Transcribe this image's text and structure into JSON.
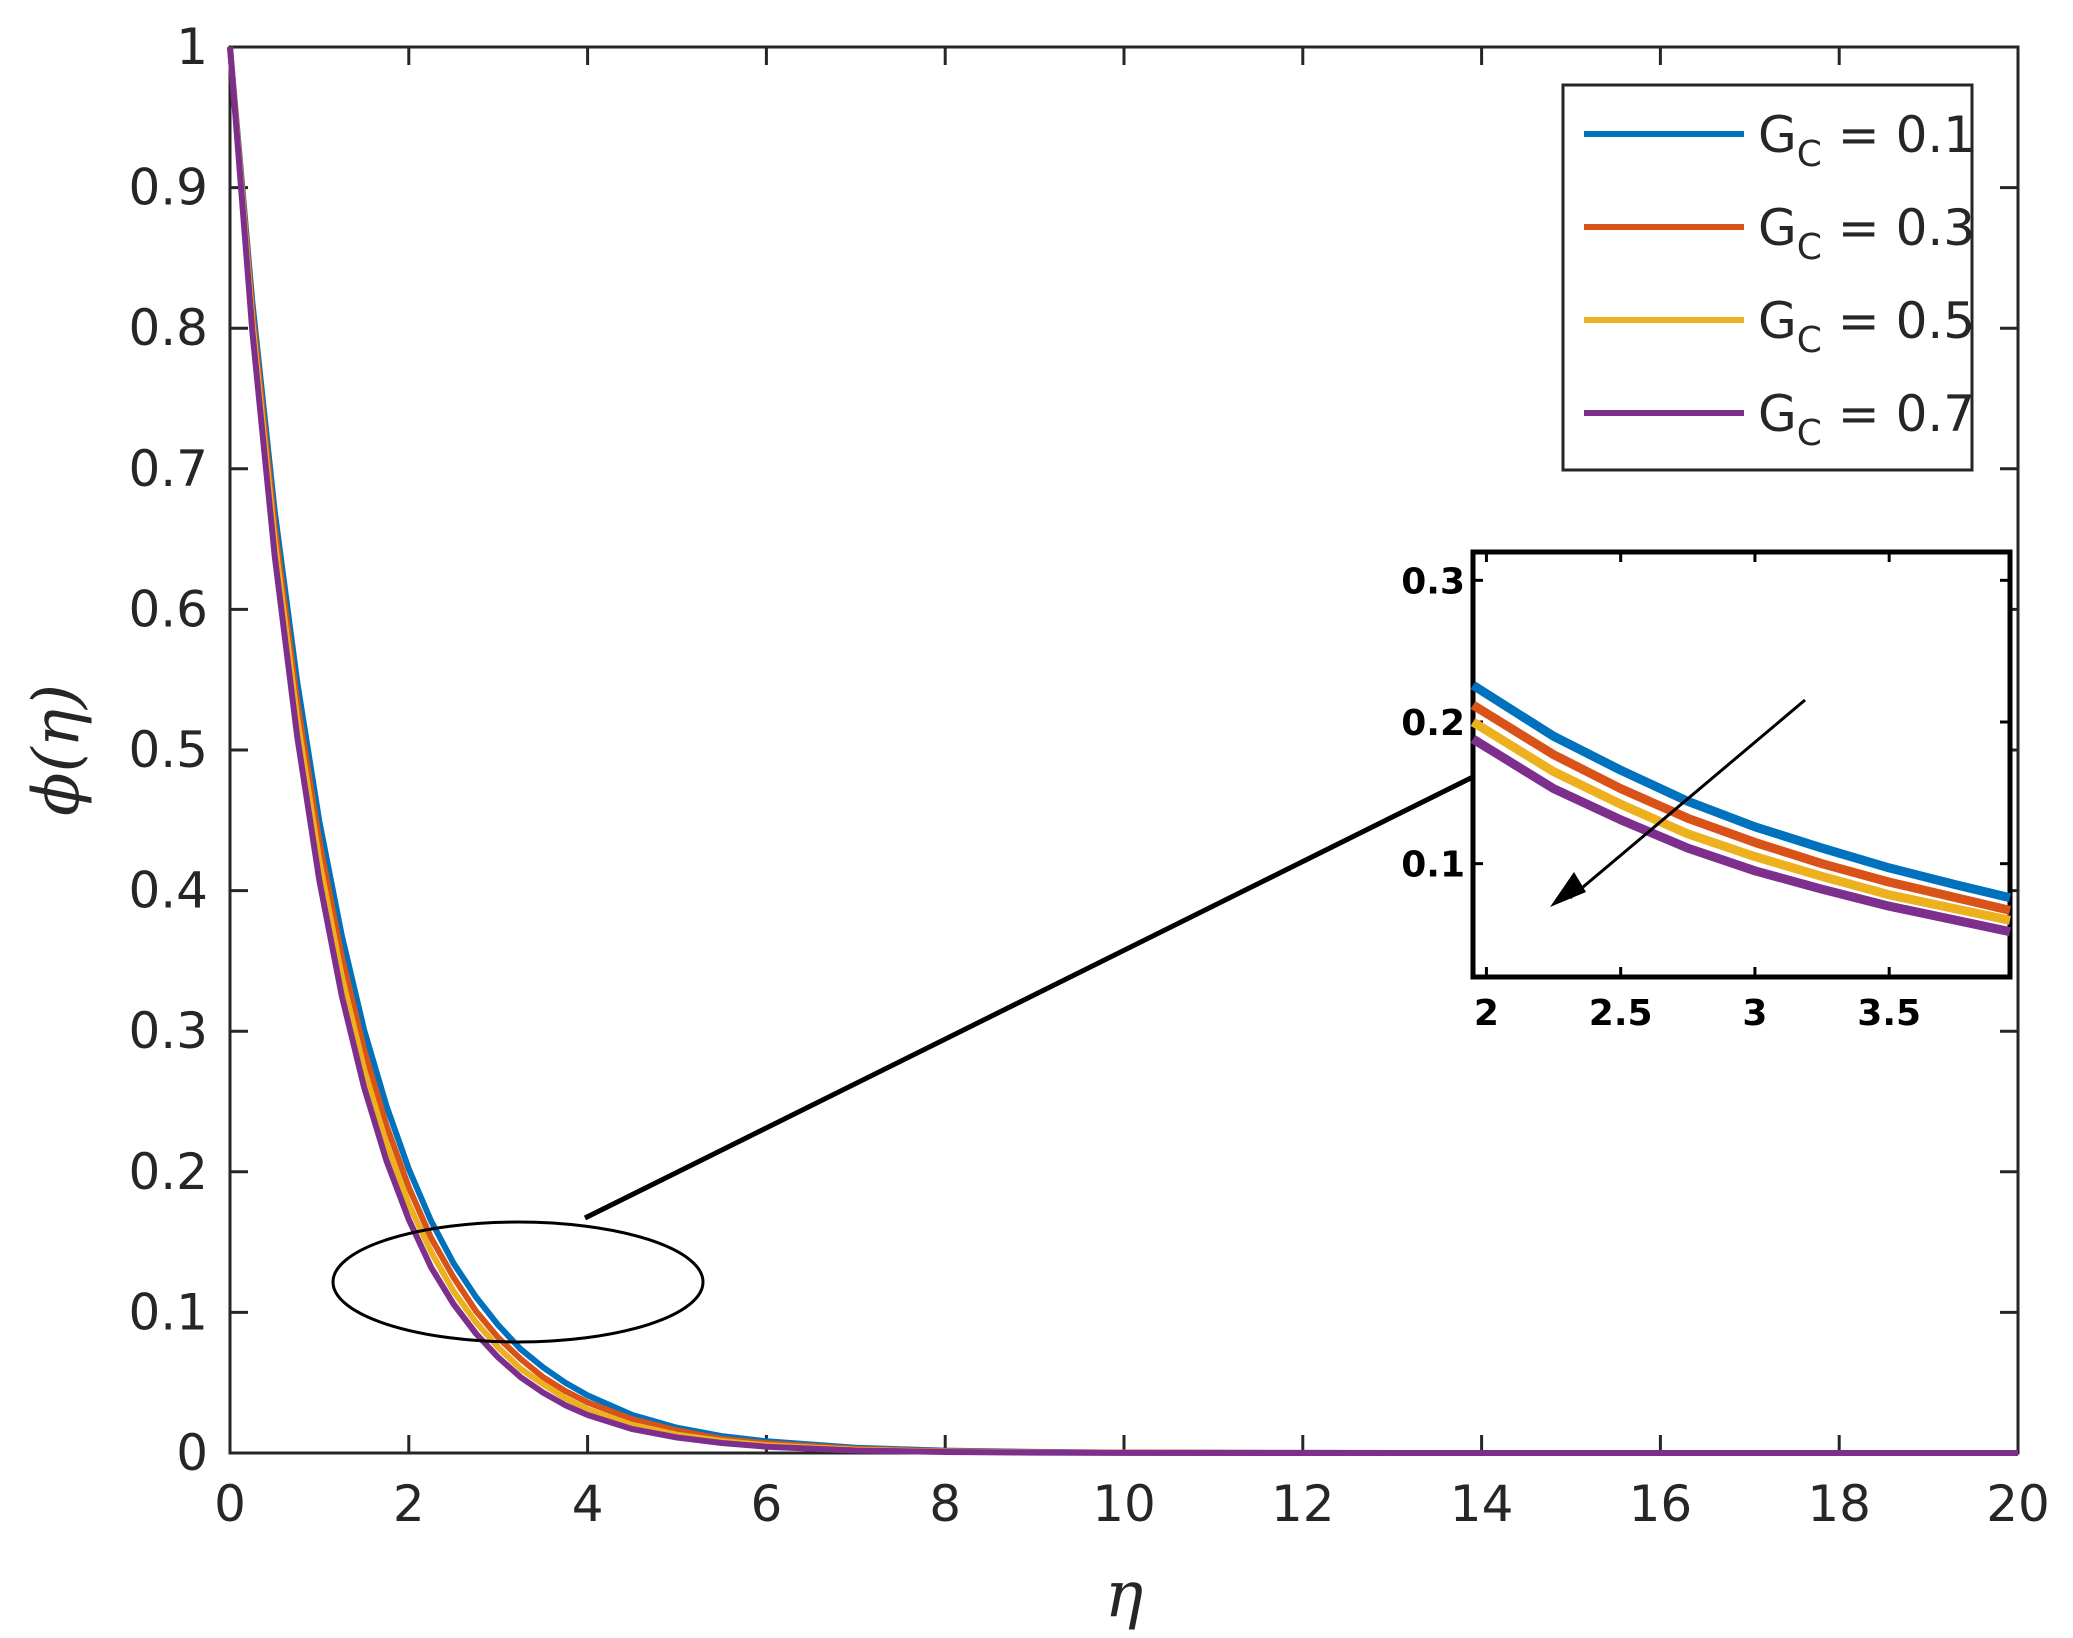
{
  "chart_data": [
    {
      "type": "line",
      "xlabel": "η",
      "ylabel": "ϕ(η)",
      "xlim": [
        0,
        20
      ],
      "ylim": [
        0,
        1
      ],
      "x_ticks": [
        "0",
        "2",
        "4",
        "6",
        "8",
        "10",
        "12",
        "14",
        "16",
        "18",
        "20"
      ],
      "y_ticks": [
        "0",
        "0.1",
        "0.2",
        "0.3",
        "0.4",
        "0.5",
        "0.6",
        "0.7",
        "0.8",
        "0.9",
        "1"
      ],
      "grid": false,
      "legend_position": "top-right",
      "x": [
        0,
        0.25,
        0.5,
        0.75,
        1,
        1.25,
        1.5,
        1.75,
        2,
        2.25,
        2.5,
        2.75,
        3,
        3.25,
        3.5,
        3.75,
        4,
        4.5,
        5,
        5.5,
        6,
        7,
        8,
        9,
        10,
        12,
        14,
        16,
        18,
        20
      ],
      "series": [
        {
          "name": "= 0.1",
          "legend_base": "G",
          "legend_sub": "C",
          "color": "#0072BD",
          "values": [
            1,
            0.819,
            0.67,
            0.549,
            0.449,
            0.368,
            0.301,
            0.247,
            0.202,
            0.165,
            0.135,
            0.111,
            0.091,
            0.074,
            0.061,
            0.05,
            0.041,
            0.027,
            0.018,
            0.012,
            0.0083,
            0.0037,
            0.0017,
            0.0008,
            0.0003,
            0.0001,
            0,
            0,
            0,
            0
          ]
        },
        {
          "name": "= 0.3",
          "legend_base": "G",
          "legend_sub": "C",
          "color": "#D95319",
          "values": [
            1,
            0.812,
            0.659,
            0.535,
            0.435,
            0.353,
            0.287,
            0.233,
            0.189,
            0.153,
            0.125,
            0.101,
            0.082,
            0.067,
            0.054,
            0.044,
            0.036,
            0.024,
            0.016,
            0.01,
            0.0069,
            0.003,
            0.0013,
            0.0006,
            0.0003,
            0.0001,
            0,
            0,
            0,
            0
          ]
        },
        {
          "name": "= 0.5",
          "legend_base": "G",
          "legend_sub": "C",
          "color": "#EDB120",
          "values": [
            1,
            0.805,
            0.649,
            0.523,
            0.421,
            0.339,
            0.273,
            0.22,
            0.177,
            0.143,
            0.115,
            0.093,
            0.075,
            0.06,
            0.049,
            0.039,
            0.031,
            0.02,
            0.013,
            0.0085,
            0.0055,
            0.0023,
            0.001,
            0.0004,
            0.0002,
            0,
            0,
            0,
            0,
            0
          ]
        },
        {
          "name": "= 0.7",
          "legend_base": "G",
          "legend_sub": "C",
          "color": "#7E2F8E",
          "values": [
            1,
            0.798,
            0.638,
            0.51,
            0.407,
            0.325,
            0.26,
            0.208,
            0.166,
            0.132,
            0.106,
            0.085,
            0.068,
            0.054,
            0.043,
            0.034,
            0.027,
            0.017,
            0.011,
            0.0071,
            0.0045,
            0.0018,
            0.0007,
            0.0003,
            0.0001,
            0,
            0,
            0,
            0,
            0
          ]
        }
      ]
    },
    {
      "type": "line",
      "role": "inset",
      "xlim": [
        1.95,
        3.95
      ],
      "ylim": [
        0.02,
        0.32
      ],
      "x_ticks": [
        "2",
        "2.5",
        "3",
        "3.5"
      ],
      "y_ticks": [
        "0.1",
        "0.2",
        "0.3"
      ],
      "x": [
        1.95,
        2.25,
        2.5,
        2.75,
        3.0,
        3.25,
        3.5,
        3.75,
        3.95
      ],
      "series": [
        {
          "name": "= 0.1",
          "color": "#0072BD",
          "values": [
            0.226,
            0.19,
            0.166,
            0.144,
            0.126,
            0.111,
            0.097,
            0.085,
            0.076
          ]
        },
        {
          "name": "= 0.3",
          "color": "#D95319",
          "values": [
            0.212,
            0.177,
            0.153,
            0.132,
            0.115,
            0.1,
            0.087,
            0.076,
            0.067
          ]
        },
        {
          "name": "= 0.5",
          "color": "#EDB120",
          "values": [
            0.2,
            0.165,
            0.142,
            0.121,
            0.105,
            0.091,
            0.078,
            0.068,
            0.06
          ]
        },
        {
          "name": "= 0.7",
          "color": "#7E2F8E",
          "values": [
            0.188,
            0.153,
            0.131,
            0.111,
            0.095,
            0.082,
            0.07,
            0.06,
            0.052
          ]
        }
      ]
    }
  ]
}
